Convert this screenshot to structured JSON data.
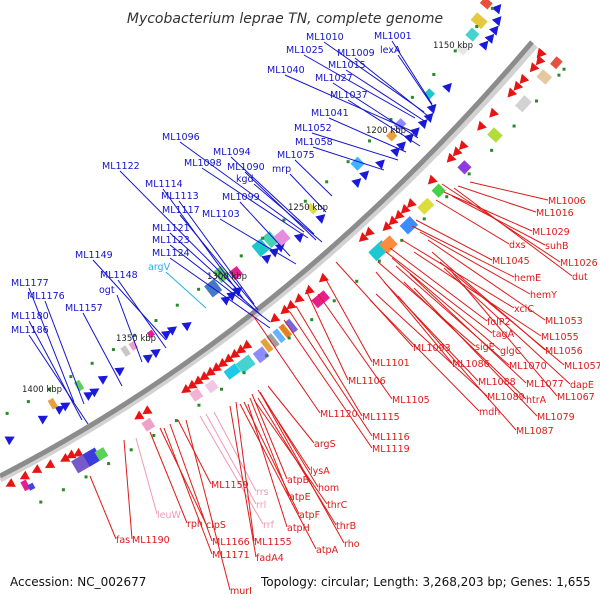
{
  "title": "Mycobacterium leprae TN, complete genome",
  "footer": {
    "accession": "Accession: NC_002677",
    "topology": "Topology: circular; Length: 3,268,203 bp; Genes: 1,655"
  },
  "colors": {
    "outer_label": "#1414cc",
    "outer_label_light": "#22b4e0",
    "inner_label": "#dd1a1a",
    "inner_label_light": "#f09ab8",
    "backbone": "#8c8c8c",
    "forward_arrow": "#1a1ad8",
    "reverse_arrow": "#e81414",
    "tick_dot": "#2a8a2a"
  },
  "kbp_marks": [
    "1150 kbp",
    "1200 kbp",
    "1250 kbp",
    "1300 kbp",
    "1350 kbp",
    "1400 kbp"
  ],
  "outer_labels": [
    {
      "text": "ML1010",
      "light": false
    },
    {
      "text": "ML1001",
      "light": false
    },
    {
      "text": "ML1025",
      "light": false
    },
    {
      "text": "ML1009",
      "light": false
    },
    {
      "text": "lexA",
      "light": false
    },
    {
      "text": "ML1015",
      "light": false
    },
    {
      "text": "ML1040",
      "light": false
    },
    {
      "text": "ML1027",
      "light": false
    },
    {
      "text": "ML1037",
      "light": false
    },
    {
      "text": "ML1041",
      "light": false
    },
    {
      "text": "ML1052",
      "light": false
    },
    {
      "text": "ML1058",
      "light": false
    },
    {
      "text": "ML1096",
      "light": false
    },
    {
      "text": "ML1094",
      "light": false
    },
    {
      "text": "ML1075",
      "light": false
    },
    {
      "text": "ML1098",
      "light": false
    },
    {
      "text": "ML1090",
      "light": false
    },
    {
      "text": "mrp",
      "light": false
    },
    {
      "text": "ML1122",
      "light": false
    },
    {
      "text": "kgd",
      "light": false
    },
    {
      "text": "ML1114",
      "light": false
    },
    {
      "text": "ML1113",
      "light": false
    },
    {
      "text": "ML1099",
      "light": false
    },
    {
      "text": "ML1117",
      "light": false
    },
    {
      "text": "ML1103",
      "light": false
    },
    {
      "text": "ML1121",
      "light": false
    },
    {
      "text": "ML1123",
      "light": false
    },
    {
      "text": "ML1124",
      "light": false
    },
    {
      "text": "argV",
      "light": true
    },
    {
      "text": "ML1149",
      "light": false
    },
    {
      "text": "ML1148",
      "light": false
    },
    {
      "text": "ML1177",
      "light": false
    },
    {
      "text": "ogt",
      "light": false
    },
    {
      "text": "ML1176",
      "light": false
    },
    {
      "text": "ML1157",
      "light": false
    },
    {
      "text": "ML1180",
      "light": false
    },
    {
      "text": "ML1186",
      "light": false
    }
  ],
  "inner_labels": [
    {
      "text": "ML1006",
      "light": false
    },
    {
      "text": "ML1016",
      "light": false
    },
    {
      "text": "ML1029",
      "light": false
    },
    {
      "text": "dxs",
      "light": false
    },
    {
      "text": "suhB",
      "light": false
    },
    {
      "text": "ML1026",
      "light": false
    },
    {
      "text": "ML1045",
      "light": false
    },
    {
      "text": "dut",
      "light": false
    },
    {
      "text": "hemE",
      "light": false
    },
    {
      "text": "hemY",
      "light": false
    },
    {
      "text": "xclC",
      "light": false
    },
    {
      "text": "folP2",
      "light": false
    },
    {
      "text": "ML1053",
      "light": false
    },
    {
      "text": "tagA",
      "light": false
    },
    {
      "text": "ML1055",
      "light": false
    },
    {
      "text": "sigE",
      "light": false
    },
    {
      "text": "glgC",
      "light": false
    },
    {
      "text": "ML1056",
      "light": false
    },
    {
      "text": "ML1093",
      "light": false
    },
    {
      "text": "ML1086",
      "light": false
    },
    {
      "text": "ML1070",
      "light": false
    },
    {
      "text": "ML1057",
      "light": false
    },
    {
      "text": "ML1101",
      "light": false
    },
    {
      "text": "ML1088",
      "light": false
    },
    {
      "text": "ML1077",
      "light": false
    },
    {
      "text": "dapE",
      "light": false
    },
    {
      "text": "ML1106",
      "light": false
    },
    {
      "text": "ML1089",
      "light": false
    },
    {
      "text": "htrA",
      "light": false
    },
    {
      "text": "ML1067",
      "light": false
    },
    {
      "text": "ML1105",
      "light": false
    },
    {
      "text": "mdh",
      "light": false
    },
    {
      "text": "ML1079",
      "light": false
    },
    {
      "text": "ML1120",
      "light": false
    },
    {
      "text": "ML1115",
      "light": false
    },
    {
      "text": "ML1087",
      "light": false
    },
    {
      "text": "ML1116",
      "light": false
    },
    {
      "text": "ML1119",
      "light": false
    },
    {
      "text": "argS",
      "light": false
    },
    {
      "text": "lysA",
      "light": false
    },
    {
      "text": "atpB",
      "light": false
    },
    {
      "text": "hom",
      "light": false
    },
    {
      "text": "ML1159",
      "light": false
    },
    {
      "text": "rrs",
      "light": true
    },
    {
      "text": "atpE",
      "light": false
    },
    {
      "text": "rrl",
      "light": true
    },
    {
      "text": "thrC",
      "light": false
    },
    {
      "text": "atpF",
      "light": false
    },
    {
      "text": "rrf",
      "light": true
    },
    {
      "text": "thrB",
      "light": false
    },
    {
      "text": "leuW",
      "light": true
    },
    {
      "text": "rph",
      "light": false
    },
    {
      "text": "clpS",
      "light": false
    },
    {
      "text": "atpH",
      "light": false
    },
    {
      "text": "rho",
      "light": false
    },
    {
      "text": "fas",
      "light": false
    },
    {
      "text": "ML1190",
      "light": false
    },
    {
      "text": "ML1166",
      "light": false
    },
    {
      "text": "ML1155",
      "light": false
    },
    {
      "text": "atpA",
      "light": false
    },
    {
      "text": "ML1171",
      "light": false
    },
    {
      "text": "fadA4",
      "light": false
    },
    {
      "text": "murI",
      "light": false
    }
  ]
}
